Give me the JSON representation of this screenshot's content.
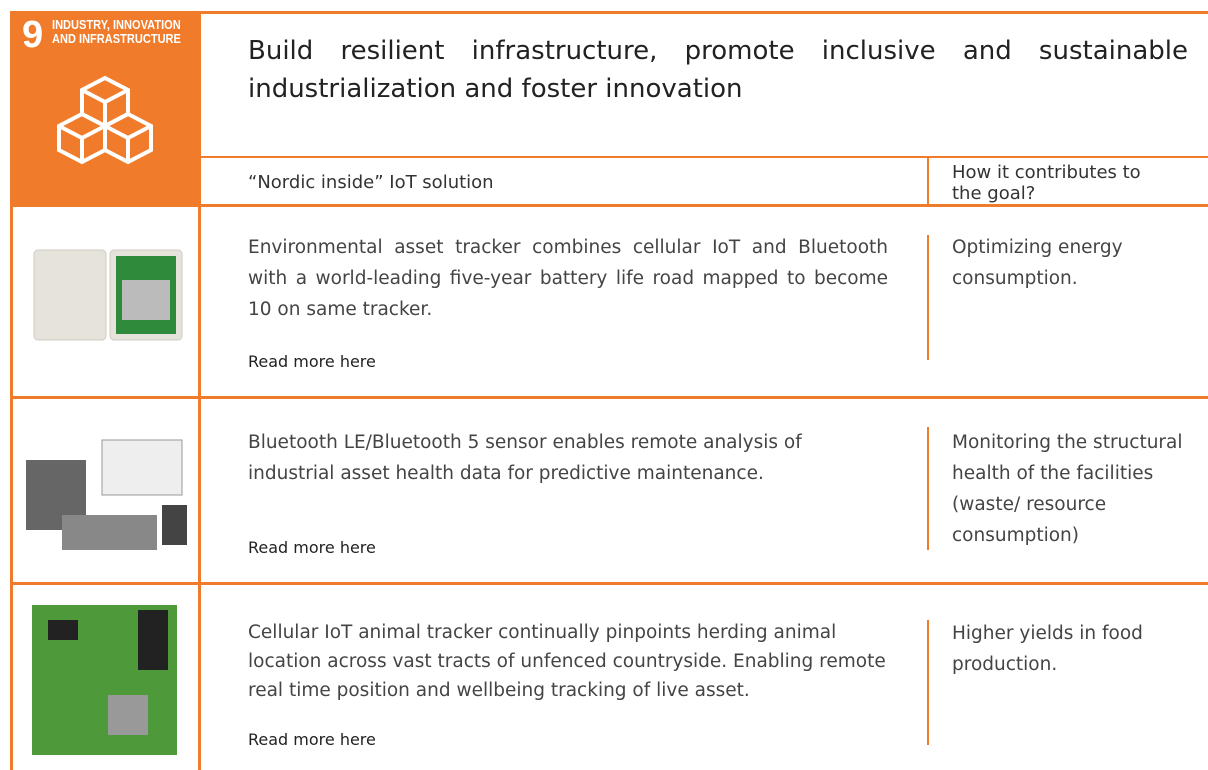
{
  "goal": {
    "number": "9",
    "label_lines": [
      "INDUSTRY, INNOVATION",
      "AND INFRASTRUCTURE"
    ]
  },
  "header": {
    "title": "Build resilient infrastructure, promote inclusive and sustainable industrialization and foster innovation"
  },
  "columns": [
    "“Nordic inside” IoT solution",
    "How it contributes to the goal?"
  ],
  "rows": [
    {
      "description": "Environmental asset tracker combines cellular IoT and Bluetooth with a world-leading five-year battery life road mapped to become 10 on same tracker.",
      "link": "Read more here",
      "contribution": "Optimizing energy consumption."
    },
    {
      "description": "Bluetooth LE/Bluetooth 5 sensor enables remote analysis of industrial asset health data for predictive maintenance.",
      "link": "Read more here",
      "contribution": "Monitoring the structural health of the facilities (waste/ resource consumption)"
    },
    {
      "description": "Cellular IoT animal tracker continually pinpoints herding animal location across vast tracts of unfenced countryside. Enabling remote real time position and wellbeing tracking of live asset.",
      "link": "Read more here",
      "contribution": "Higher yields in food production."
    }
  ]
}
